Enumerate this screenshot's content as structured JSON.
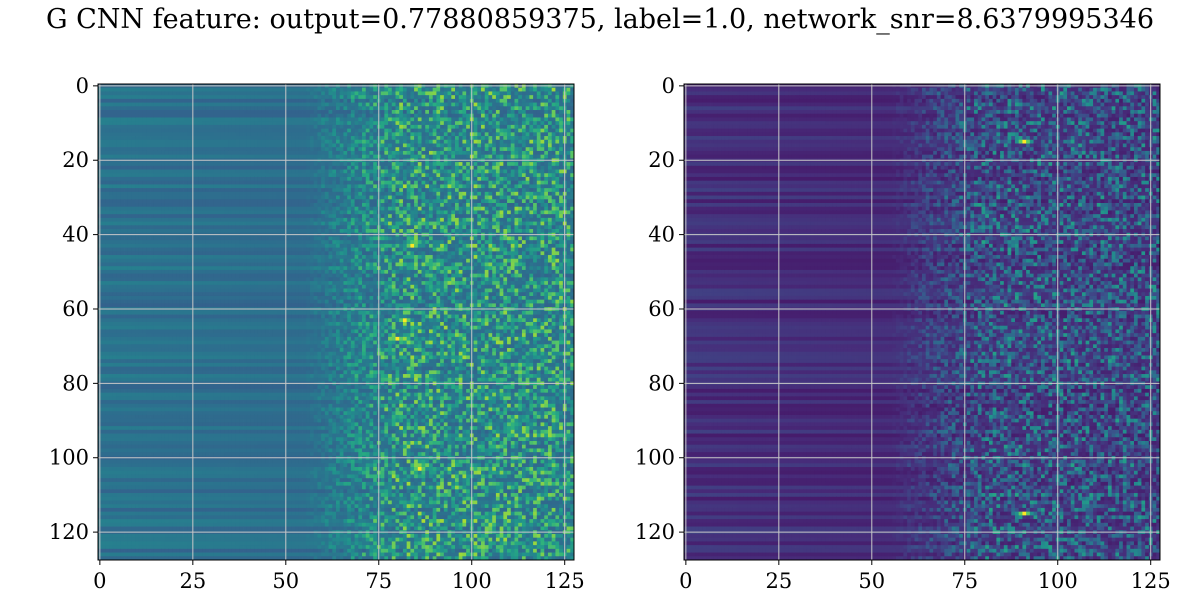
{
  "title": "G CNN feature: output=0.77880859375, label=1.0, network_snr=8.6379995346",
  "chart_data": [
    {
      "type": "heatmap",
      "colormap": "viridis",
      "shape": [
        128,
        128
      ],
      "xlim": [
        0,
        127
      ],
      "ylim": [
        127,
        0
      ],
      "xticks": [
        0,
        25,
        50,
        75,
        100,
        125
      ],
      "yticks": [
        0,
        20,
        40,
        60,
        80,
        100,
        120
      ],
      "grid": true,
      "description_of_values": "low smooth horizontal banding for columns 0-75, noisy higher values for columns 75-127; brightest spots near (82,63), (80,68), (86,103)",
      "hotspots": [
        [
          82,
          63
        ],
        [
          80,
          68
        ],
        [
          86,
          103
        ],
        [
          84,
          43
        ]
      ],
      "seed": 7,
      "base_level": 0.32,
      "noise_level": 0.5
    },
    {
      "type": "heatmap",
      "colormap": "viridis",
      "shape": [
        128,
        128
      ],
      "xlim": [
        0,
        127
      ],
      "ylim": [
        127,
        0
      ],
      "xticks": [
        0,
        25,
        50,
        75,
        100,
        125
      ],
      "yticks": [
        0,
        20,
        40,
        60,
        80,
        100,
        120
      ],
      "grid": true,
      "description_of_values": "mostly dark purple with banding on the left, noisy teal/green values for columns 70-127; brightest spots near (91,115), (91,15)",
      "hotspots": [
        [
          91,
          115
        ],
        [
          91,
          15
        ]
      ],
      "seed": 13,
      "base_level": 0.08,
      "noise_level": 0.45
    }
  ]
}
